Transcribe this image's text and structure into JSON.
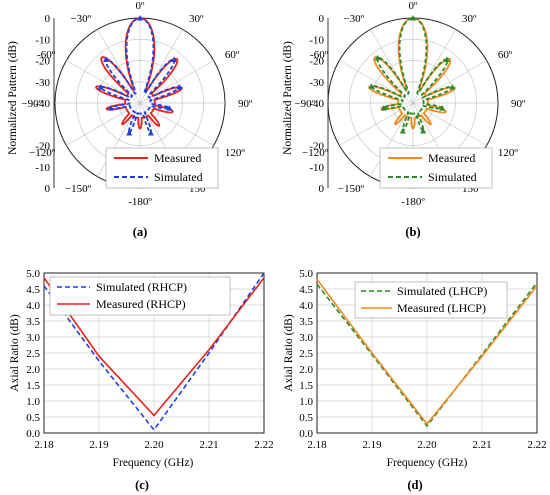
{
  "chart_data": [
    {
      "panel": "(a)",
      "type": "polar",
      "ylabel": "Normalized Pattern (dB)",
      "radial_ticks": [
        0,
        -10,
        -20,
        -30,
        -40
      ],
      "radial_range": [
        -40,
        0
      ],
      "angle_labels": [
        {
          "angle": 0,
          "label": "0º"
        },
        {
          "angle": 30,
          "label": "30º"
        },
        {
          "angle": 60,
          "label": "60º"
        },
        {
          "angle": 90,
          "label": "90º"
        },
        {
          "angle": 120,
          "label": "120º"
        },
        {
          "angle": 150,
          "label": "150º"
        },
        {
          "angle": 180,
          "label": "-180º"
        },
        {
          "angle": -150,
          "label": "−150º"
        },
        {
          "angle": -120,
          "label": "−120º"
        },
        {
          "angle": -90,
          "label": "−90º"
        },
        {
          "angle": -60,
          "label": "-60º"
        },
        {
          "angle": -30,
          "label": "−30º"
        }
      ],
      "legend": [
        "Measured",
        "Simulated"
      ],
      "series": [
        {
          "name": "Measured",
          "color": "#e8211b",
          "dash": "solid",
          "lobes": [
            [
              0,
              0,
              14
            ],
            [
              -40,
              -12,
              8
            ],
            [
              40,
              -13,
              8
            ],
            [
              -70,
              -18,
              7
            ],
            [
              70,
              -19,
              7
            ],
            [
              -100,
              -24,
              7
            ],
            [
              105,
              -24,
              8
            ],
            [
              -140,
              -27,
              8
            ],
            [
              140,
              -26,
              8
            ],
            [
              180,
              -28,
              10
            ]
          ],
          "floor_db": -33
        },
        {
          "name": "Simulated",
          "color": "#1f3fe0",
          "dash": "dashed",
          "lobes": [
            [
              0,
              0,
              13
            ],
            [
              -38,
              -14,
              7
            ],
            [
              38,
              -14,
              7
            ],
            [
              -68,
              -20,
              6
            ],
            [
              68,
              -20,
              6
            ],
            [
              -100,
              -26,
              6
            ],
            [
              100,
              -26,
              6
            ],
            [
              -160,
              -25,
              6
            ],
            [
              160,
              -25,
              6
            ]
          ],
          "floor_db": -35
        }
      ]
    },
    {
      "panel": "(b)",
      "type": "polar",
      "ylabel": "Normalized Pattern (dB)",
      "radial_ticks": [
        0,
        -10,
        -20,
        -30,
        -40
      ],
      "radial_range": [
        -40,
        0
      ],
      "angle_labels": [
        {
          "angle": 0,
          "label": "0º"
        },
        {
          "angle": 30,
          "label": "30º"
        },
        {
          "angle": 60,
          "label": "60º"
        },
        {
          "angle": 90,
          "label": "90º"
        },
        {
          "angle": 120,
          "label": "120º"
        },
        {
          "angle": 150,
          "label": "150º"
        },
        {
          "angle": 180,
          "label": "-180º"
        },
        {
          "angle": -150,
          "label": "−150º"
        },
        {
          "angle": -120,
          "label": "−120º"
        },
        {
          "angle": -90,
          "label": "−90º"
        },
        {
          "angle": -60,
          "label": "-60º"
        },
        {
          "angle": -30,
          "label": "−30º"
        }
      ],
      "legend": [
        "Measured",
        "Simulated"
      ],
      "series": [
        {
          "name": "Measured",
          "color": "#f28a1e",
          "dash": "solid",
          "lobes": [
            [
              0,
              0,
              14
            ],
            [
              -40,
              -12,
              8
            ],
            [
              40,
              -13,
              8
            ],
            [
              -70,
              -18,
              7
            ],
            [
              70,
              -19,
              7
            ],
            [
              -100,
              -25,
              7
            ],
            [
              105,
              -24,
              8
            ],
            [
              -140,
              -27,
              8
            ],
            [
              140,
              -27,
              8
            ],
            [
              180,
              -28,
              10
            ]
          ],
          "floor_db": -33
        },
        {
          "name": "Simulated",
          "color": "#2a8a2a",
          "dash": "dashed",
          "lobes": [
            [
              0,
              0,
              13
            ],
            [
              -38,
              -13,
              7
            ],
            [
              38,
              -14,
              7
            ],
            [
              -68,
              -19,
              6
            ],
            [
              68,
              -20,
              6
            ],
            [
              -100,
              -26,
              6
            ],
            [
              100,
              -26,
              6
            ],
            [
              -160,
              -26,
              6
            ],
            [
              160,
              -26,
              6
            ]
          ],
          "floor_db": -35
        }
      ]
    },
    {
      "panel": "(c)",
      "type": "line",
      "xlabel": "Frequency (GHz)",
      "ylabel": "Axial Ratio (dB)",
      "xlim": [
        2.18,
        2.22
      ],
      "ylim": [
        0,
        5
      ],
      "x_ticks": [
        "2.18",
        "2.19",
        "2.20",
        "2.21",
        "2.22"
      ],
      "y_ticks": [
        "0.0",
        "0.5",
        "1.0",
        "1.5",
        "2.0",
        "2.5",
        "3.0",
        "3.5",
        "4.0",
        "4.5",
        "5.0"
      ],
      "grid": true,
      "legend_position": "top-left",
      "series": [
        {
          "name": "Simulated (RHCP)",
          "color": "#1f3fe0",
          "dash": "dashed",
          "x": [
            2.18,
            2.19,
            2.2,
            2.21,
            2.22
          ],
          "y": [
            4.6,
            2.25,
            0.1,
            2.5,
            5.0
          ]
        },
        {
          "name": "Measured (RHCP)",
          "color": "#e8211b",
          "dash": "solid",
          "x": [
            2.18,
            2.19,
            2.2,
            2.21,
            2.22
          ],
          "y": [
            4.85,
            2.4,
            0.55,
            2.6,
            4.85
          ]
        }
      ]
    },
    {
      "panel": "(d)",
      "type": "line",
      "xlabel": "Frequency (GHz)",
      "ylabel": "Axial Ratio (dB)",
      "xlim": [
        2.18,
        2.22
      ],
      "ylim": [
        0,
        5
      ],
      "x_ticks": [
        "2.18",
        "2.19",
        "2.20",
        "2.21",
        "2.22"
      ],
      "y_ticks": [
        "0.0",
        "0.5",
        "1.0",
        "1.5",
        "2.0",
        "2.5",
        "3.0",
        "3.5",
        "4.0",
        "4.5",
        "5.0"
      ],
      "grid": true,
      "legend_position": "top-left",
      "series": [
        {
          "name": "Simulated (LHCP)",
          "color": "#2a8a2a",
          "dash": "dashed",
          "x": [
            2.18,
            2.19,
            2.2,
            2.21,
            2.22
          ],
          "y": [
            4.65,
            2.45,
            0.22,
            2.45,
            4.7
          ]
        },
        {
          "name": "Measured (LHCP)",
          "color": "#f28a1e",
          "dash": "solid",
          "x": [
            2.18,
            2.19,
            2.2,
            2.21,
            2.22
          ],
          "y": [
            4.8,
            2.5,
            0.28,
            2.4,
            4.6
          ]
        }
      ]
    }
  ]
}
